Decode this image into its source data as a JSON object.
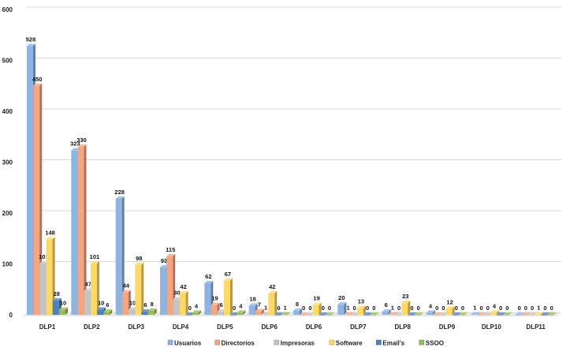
{
  "chart_data": {
    "type": "bar",
    "title": "",
    "xlabel": "",
    "ylabel": "",
    "ylim": [
      0,
      600
    ],
    "yticks": [
      0,
      100,
      200,
      300,
      400,
      500,
      600
    ],
    "grid": true,
    "legend_position": "bottom",
    "categories": [
      "DLP1",
      "DLP2",
      "DLP3",
      "DLP4",
      "DLP5",
      "DLP6",
      "DLP6",
      "DLP7",
      "DLP8",
      "DLP9",
      "DLP10",
      "DLP11"
    ],
    "series": [
      {
        "name": "Usuarios",
        "color": "#8db4e2",
        "values": [
          528,
          323,
          228,
          93,
          62,
          18,
          8,
          20,
          6,
          4,
          1,
          0
        ]
      },
      {
        "name": "Directorios",
        "color": "#f4a582",
        "values": [
          450,
          330,
          44,
          115,
          19,
          7,
          0,
          1,
          1,
          0,
          0,
          0
        ]
      },
      {
        "name": "Impresoras",
        "color": "#c4c4c4",
        "values": [
          101,
          47,
          10,
          30,
          6,
          1,
          0,
          0,
          0,
          0,
          0,
          0
        ]
      },
      {
        "name": "Software",
        "color": "#ffd966",
        "values": [
          148,
          101,
          98,
          42,
          67,
          42,
          19,
          13,
          23,
          12,
          4,
          1
        ]
      },
      {
        "name": "Email's",
        "color": "#4f81bd",
        "values": [
          28,
          10,
          6,
          0,
          0,
          0,
          0,
          0,
          0,
          0,
          0,
          0
        ]
      },
      {
        "name": "SSOO",
        "color": "#9bbb59",
        "values": [
          10,
          6,
          8,
          4,
          4,
          1,
          0,
          0,
          0,
          0,
          0,
          0
        ]
      }
    ]
  }
}
